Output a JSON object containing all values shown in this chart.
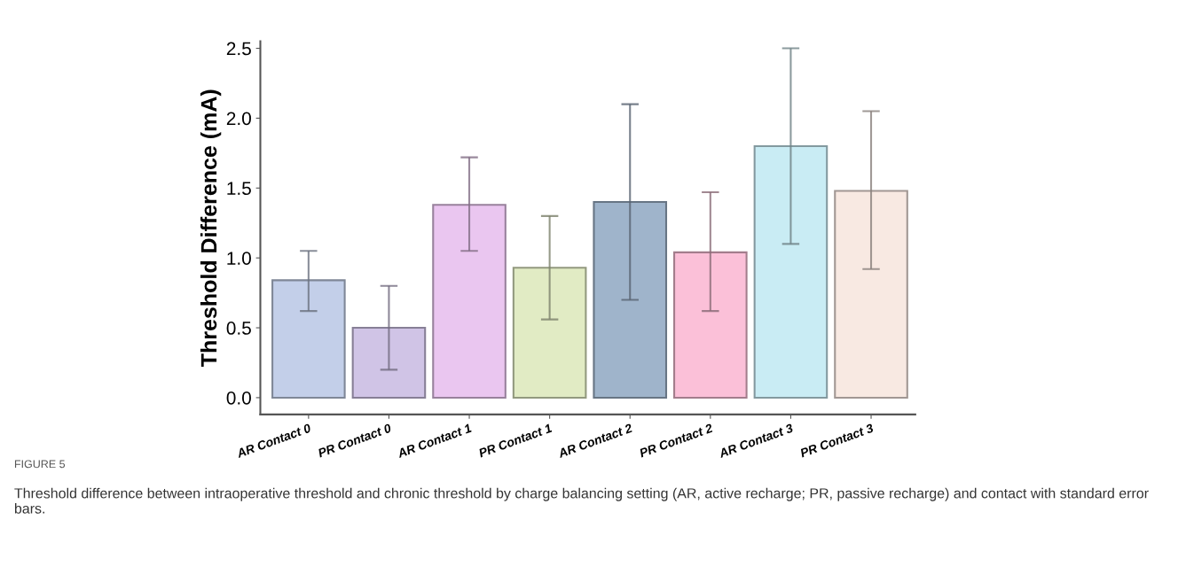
{
  "chart_data": {
    "type": "bar",
    "categories": [
      "AR Contact 0",
      "PR Contact 0",
      "AR Contact 1",
      "PR Contact 1",
      "AR Contact 2",
      "PR Contact 2",
      "AR Contact 3",
      "PR Contact 3"
    ],
    "values": [
      0.84,
      0.5,
      1.38,
      0.93,
      1.4,
      1.04,
      1.8,
      1.48
    ],
    "errors": [
      [
        0.62,
        1.05
      ],
      [
        0.2,
        0.8
      ],
      [
        1.05,
        1.72
      ],
      [
        0.56,
        1.3
      ],
      [
        0.7,
        2.1
      ],
      [
        0.62,
        1.47
      ],
      [
        1.1,
        2.5
      ],
      [
        0.92,
        2.05
      ]
    ],
    "colors": [
      "#c3cfe9",
      "#d0c4e6",
      "#eac6f0",
      "#e1ebc4",
      "#9fb4cb",
      "#fbc0d8",
      "#c9ecf4",
      "#f8e9e2"
    ],
    "ylabel": "Threshold Difference (mA)",
    "ylim": [
      -0.12,
      2.55
    ],
    "yticks": [
      {
        "value": 0,
        "label": "0.0"
      },
      0.5,
      {
        "value": 1,
        "label": "1.0"
      },
      1.5,
      {
        "value": 2,
        "label": "2.0"
      },
      2.5
    ],
    "grid": false,
    "legend": false,
    "annotations": [
      "FIGURE 5",
      "Threshold difference between intraoperative threshold and chronic threshold by charge balancing setting (AR, active recharge; PR, passive recharge) and contact with standard error bars."
    ]
  }
}
